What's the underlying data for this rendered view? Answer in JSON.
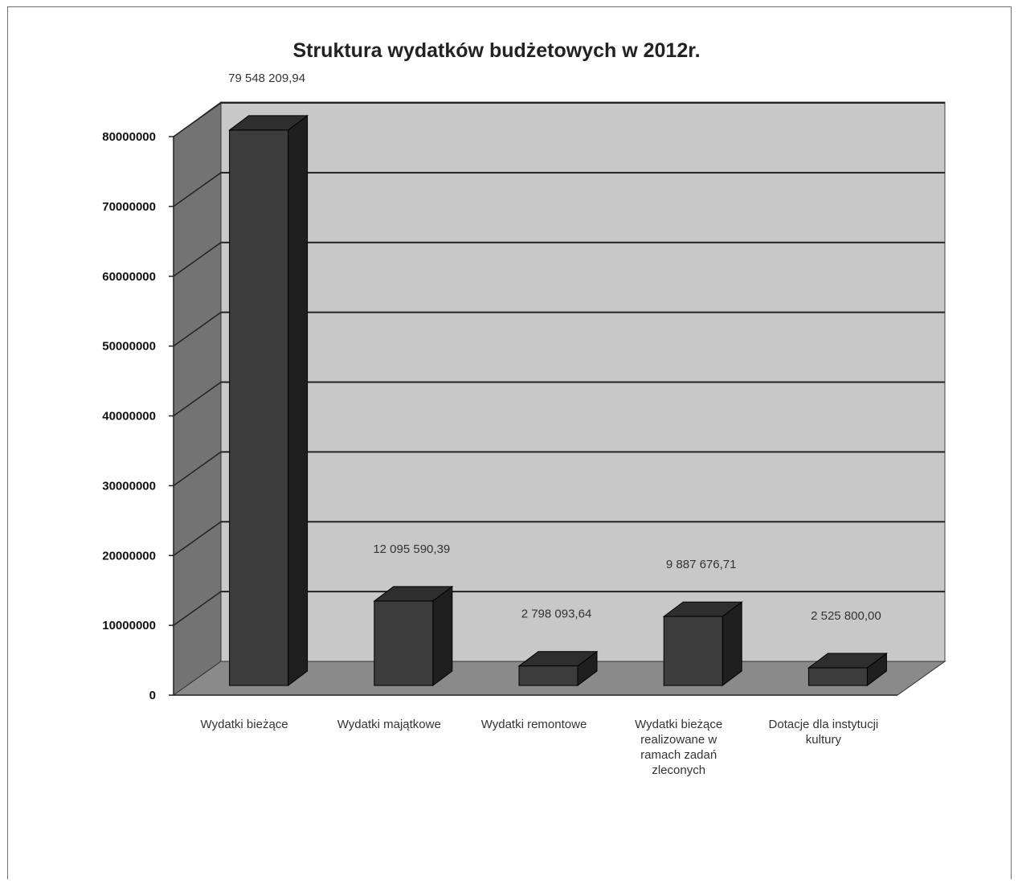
{
  "chart_data": {
    "type": "bar",
    "title": "Struktura wydatków budżetowych w 2012r.",
    "xlabel": "",
    "ylabel": "",
    "ylim": [
      0,
      80000000
    ],
    "yticks": [
      "0",
      "10000000",
      "20000000",
      "30000000",
      "40000000",
      "50000000",
      "60000000",
      "70000000",
      "80000000"
    ],
    "grid": true,
    "legend": "none",
    "categories": [
      "Wydatki bieżące",
      "Wydatki majątkowe",
      "Wydatki remontowe",
      "Wydatki bieżące realizowane w ramach zadań zleconych",
      "Dotacje dla instytucji kultury"
    ],
    "values": [
      79548209.94,
      12095590.39,
      2798093.64,
      9887676.71,
      2525800.0
    ],
    "data_labels": [
      "79 548 209,94",
      "12 095 590,39",
      "2 798 093,64",
      "9 887 676,71",
      "2 525 800,00"
    ],
    "colors": {
      "bar_front": "#3c3c3c",
      "bar_top": "#2e2e2e",
      "bar_side": "#1f1f1f",
      "back_wall": "#c8c8c8",
      "side_wall": "#737373",
      "floor": "#8a8a8a",
      "gridline": "#222222"
    }
  }
}
